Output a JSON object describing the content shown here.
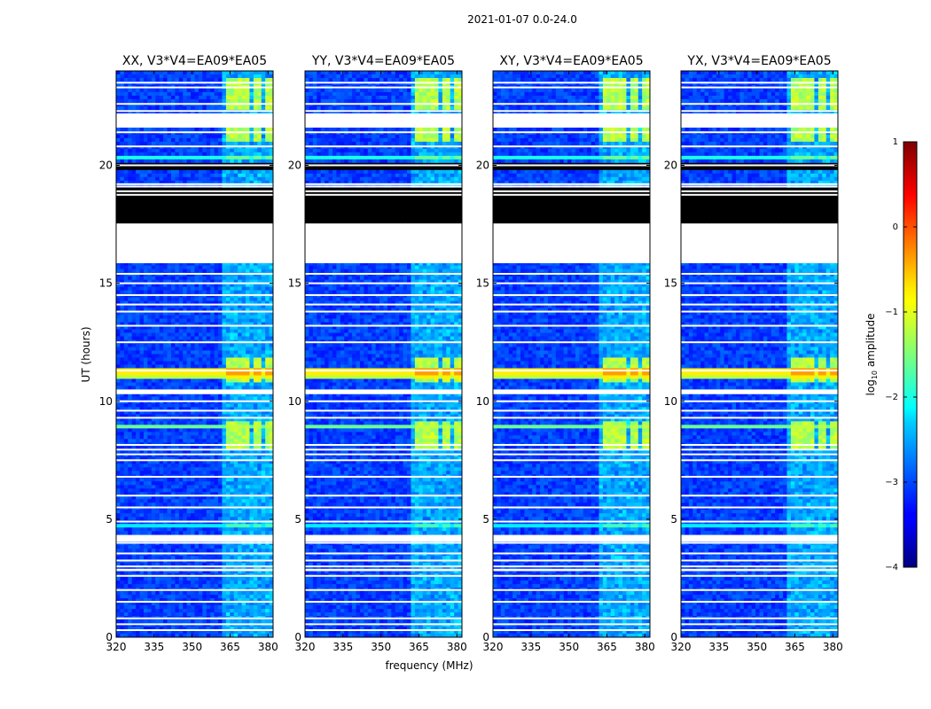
{
  "figure": {
    "suptitle": "2021-01-07 0.0-24.0"
  },
  "chart_data": {
    "type": "heatmap",
    "x_label": "frequency (MHz)",
    "y_label": "UT (hours)",
    "x_range": [
      320,
      382
    ],
    "y_range": [
      0,
      24
    ],
    "x_ticks": [
      320,
      335,
      350,
      365,
      380
    ],
    "y_ticks": [
      0,
      5,
      10,
      15,
      20
    ],
    "panels": [
      {
        "title": "XX, V3*V4=EA09*EA05",
        "pol": "XX"
      },
      {
        "title": "YY, V3*V4=EA09*EA05",
        "pol": "YY"
      },
      {
        "title": "XY, V3*V4=EA09*EA05",
        "pol": "XY"
      },
      {
        "title": "YX, V3*V4=EA09*EA05",
        "pol": "YX"
      }
    ],
    "colorbar": {
      "label_main": "log",
      "label_sub": "10",
      "label_rest": " amplitude",
      "range": [
        -4,
        1
      ],
      "ticks": [
        "1",
        "0",
        "−1",
        "−2",
        "−3",
        "−4"
      ],
      "tick_values": [
        1,
        0,
        -1,
        -2,
        -3,
        -4
      ],
      "colormap": "jet"
    },
    "flagged_hour_ranges": [
      [
        15.85,
        17.5
      ],
      [
        21.6,
        22.2
      ],
      [
        10.3,
        10.5
      ],
      [
        4.1,
        4.3
      ],
      [
        2.8,
        2.9
      ]
    ],
    "blank_hour_lines": [
      0.3,
      0.55,
      0.8,
      1.5,
      2.0,
      2.6,
      3.0,
      3.25,
      3.55,
      4.0,
      4.9,
      5.5,
      6.0,
      6.8,
      7.5,
      7.75,
      7.95,
      8.15,
      9.3,
      9.6,
      10.0,
      11.3,
      12.5,
      13.2,
      13.8,
      14.1,
      14.5,
      15.0,
      15.4,
      18.75,
      18.9,
      19.1,
      19.2,
      20.0,
      20.8,
      21.4,
      22.3,
      22.6,
      23.3,
      23.5
    ],
    "black_hour_bands": [
      [
        17.55,
        19.0
      ],
      [
        19.85,
        20.1
      ]
    ],
    "rfi_frequency_blocks_mhz": [
      [
        363.5,
        367.5
      ],
      [
        368.5,
        372.5
      ],
      [
        373.5,
        377.5
      ],
      [
        378.5,
        382.0
      ]
    ],
    "rfi_hour_bands": [
      [
        22.3,
        23.7
      ],
      [
        21.0,
        21.6
      ],
      [
        10.8,
        11.8
      ],
      [
        8.0,
        9.2
      ]
    ],
    "bright_hour_lines": [
      {
        "hour": 11.1,
        "level": -1.2
      },
      {
        "hour": 11.25,
        "level": -0.8
      },
      {
        "hour": 8.9,
        "level": -1.6
      },
      {
        "hour": 4.7,
        "level": -2.2
      },
      {
        "hour": 20.35,
        "level": -2.0
      }
    ]
  }
}
